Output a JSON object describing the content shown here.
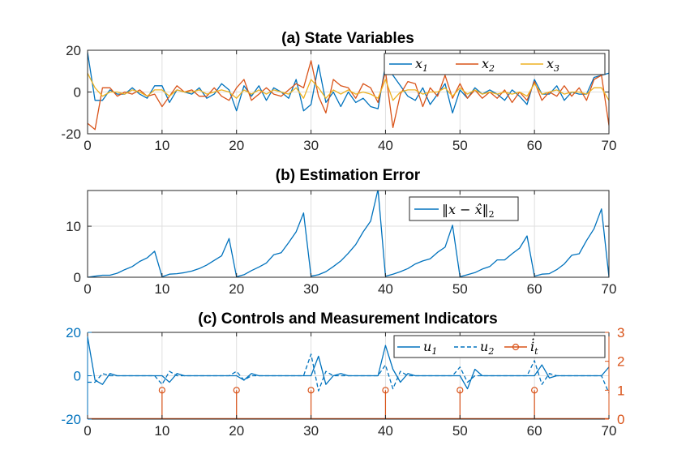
{
  "chart_data": [
    {
      "type": "line",
      "title": "(a) State Variables",
      "xlim": [
        0,
        70
      ],
      "ylim": [
        -20,
        20
      ],
      "xticks": [
        "0",
        "10",
        "20",
        "30",
        "40",
        "50",
        "60",
        "70"
      ],
      "yticks": [
        "-20",
        "0",
        "20"
      ],
      "x": [
        0,
        1,
        2,
        3,
        4,
        5,
        6,
        7,
        8,
        9,
        10,
        11,
        12,
        13,
        14,
        15,
        16,
        17,
        18,
        19,
        20,
        21,
        22,
        23,
        24,
        25,
        26,
        27,
        28,
        29,
        30,
        31,
        32,
        33,
        34,
        35,
        36,
        37,
        38,
        39,
        40,
        41,
        42,
        43,
        44,
        45,
        46,
        47,
        48,
        49,
        50,
        51,
        52,
        53,
        54,
        55,
        56,
        57,
        58,
        59,
        60,
        61,
        62,
        63,
        64,
        65,
        66,
        67,
        68,
        69,
        70
      ],
      "series": [
        {
          "name": "x1",
          "label": "x_1",
          "color": "#0072BD",
          "values": [
            19,
            -4,
            -4,
            1,
            -1,
            -1,
            2,
            -1,
            -3,
            3,
            3,
            -5,
            1,
            0,
            -1,
            2,
            -3,
            -1,
            4,
            1,
            -9,
            3,
            -2,
            3,
            -4,
            2,
            0,
            -3,
            6,
            -9,
            -6,
            13,
            -5,
            0,
            -7,
            0,
            -5,
            -3,
            -7,
            -8,
            13,
            8,
            3,
            -2,
            -4,
            2,
            -6,
            -1,
            4,
            -10,
            1,
            -3,
            2,
            -1,
            1,
            -1,
            -4,
            1,
            -2,
            -6,
            6,
            -1,
            -1,
            3,
            -4,
            0,
            -1,
            -1,
            7,
            8,
            9
          ]
        },
        {
          "name": "x2",
          "label": "x_2",
          "color": "#D95319",
          "values": [
            -15,
            -18,
            2,
            2,
            -2,
            0,
            -1,
            1,
            -2,
            -1,
            -7,
            -2,
            3,
            0,
            1,
            -2,
            -2,
            2,
            -2,
            -4,
            2,
            6,
            -4,
            -1,
            2,
            -1,
            -2,
            1,
            4,
            2,
            15,
            -2,
            -10,
            6,
            3,
            2,
            -3,
            4,
            2,
            -5,
            10,
            -17,
            -1,
            5,
            4,
            -7,
            2,
            -2,
            8,
            -3,
            4,
            -3,
            1,
            -3,
            0,
            -3,
            1,
            -5,
            0,
            -4,
            5,
            -4,
            0,
            -2,
            3,
            -2,
            2,
            -4,
            6,
            8,
            -16
          ]
        },
        {
          "name": "x3",
          "label": "x_3",
          "color": "#EDB120",
          "values": [
            9,
            2,
            -2,
            0,
            0,
            -1,
            1,
            0,
            -2,
            1,
            1,
            -2,
            1,
            0,
            0,
            1,
            -1,
            0,
            1,
            0,
            -3,
            1,
            -1,
            1,
            -1,
            1,
            0,
            -1,
            2,
            -3,
            6,
            2,
            -3,
            1,
            -1,
            1,
            -1,
            0,
            -1,
            -3,
            6,
            -4,
            0,
            1,
            1,
            -1,
            0,
            0,
            2,
            -2,
            2,
            -1,
            1,
            -1,
            0,
            -1,
            0,
            -1,
            0,
            -2,
            4,
            -1,
            0,
            1,
            -1,
            0,
            0,
            -1,
            2,
            2,
            -4
          ]
        }
      ],
      "legend": "top-right"
    },
    {
      "type": "line",
      "title": "(b) Estimation Error",
      "xlim": [
        0,
        70
      ],
      "ylim": [
        0,
        17
      ],
      "xticks": [
        "0",
        "10",
        "20",
        "30",
        "40",
        "50",
        "60",
        "70"
      ],
      "yticks": [
        "0",
        "10"
      ],
      "x": [
        0,
        1,
        2,
        3,
        4,
        5,
        6,
        7,
        8,
        9,
        10,
        11,
        12,
        13,
        14,
        15,
        16,
        17,
        18,
        19,
        20,
        21,
        22,
        23,
        24,
        25,
        26,
        27,
        28,
        29,
        30,
        31,
        32,
        33,
        34,
        35,
        36,
        37,
        38,
        39,
        40,
        41,
        42,
        43,
        44,
        45,
        46,
        47,
        48,
        49,
        50,
        51,
        52,
        53,
        54,
        55,
        56,
        57,
        58,
        59,
        60,
        61,
        62,
        63,
        64,
        65,
        66,
        67,
        68,
        69,
        70
      ],
      "series": [
        {
          "name": "err",
          "label": "||x - x̂||_2",
          "color": "#0072BD",
          "values": [
            0,
            0.2,
            0.4,
            0.4,
            0.8,
            1.5,
            2.1,
            3.1,
            3.8,
            5.1,
            0.1,
            0.6,
            0.7,
            0.9,
            1.2,
            1.7,
            2.4,
            3.3,
            4.2,
            7.6,
            0.1,
            0.5,
            1.3,
            2.0,
            2.8,
            4.4,
            4.8,
            6.8,
            8.9,
            12.6,
            0.2,
            0.5,
            1.1,
            2.1,
            3.2,
            4.7,
            6.4,
            8.9,
            11.0,
            17.2,
            0.2,
            0.6,
            1.1,
            1.7,
            2.6,
            3.2,
            3.6,
            4.9,
            5.9,
            10.2,
            0.1,
            0.5,
            0.9,
            1.6,
            2.1,
            3.4,
            3.4,
            4.6,
            5.7,
            8.1,
            0.2,
            0.6,
            0.7,
            1.5,
            2.6,
            4.3,
            4.6,
            7.2,
            9.5,
            13.4,
            0.1
          ]
        }
      ],
      "legend": "top-right"
    },
    {
      "type": "line",
      "title": "(c) Controls and Measurement Indicators",
      "xlim": [
        0,
        70
      ],
      "ylim_left": [
        -20,
        20
      ],
      "ylim_right": [
        0,
        3
      ],
      "xticks": [
        "0",
        "10",
        "20",
        "30",
        "40",
        "50",
        "60",
        "70"
      ],
      "yticks_left": [
        "-20",
        "0",
        "20"
      ],
      "yticks_right": [
        "0",
        "1",
        "2",
        "3"
      ],
      "x": [
        0,
        1,
        2,
        3,
        4,
        5,
        6,
        7,
        8,
        9,
        10,
        11,
        12,
        13,
        14,
        15,
        16,
        17,
        18,
        19,
        20,
        21,
        22,
        23,
        24,
        25,
        26,
        27,
        28,
        29,
        30,
        31,
        32,
        33,
        34,
        35,
        36,
        37,
        38,
        39,
        40,
        41,
        42,
        43,
        44,
        45,
        46,
        47,
        48,
        49,
        50,
        51,
        52,
        53,
        54,
        55,
        56,
        57,
        58,
        59,
        60,
        61,
        62,
        63,
        64,
        65,
        66,
        67,
        68,
        69,
        70
      ],
      "series": [
        {
          "name": "u1",
          "label": "u_1",
          "color": "#0072BD",
          "style": "solid",
          "axis": "left",
          "values": [
            18,
            -2,
            -4,
            1,
            0,
            0,
            0,
            0,
            0,
            0,
            0,
            -3,
            1,
            0,
            0,
            0,
            0,
            0,
            0,
            0,
            0,
            -2,
            1,
            0,
            0,
            0,
            0,
            0,
            0,
            0,
            0,
            9,
            -4,
            0,
            1,
            0,
            0,
            0,
            0,
            0,
            14,
            3,
            -3,
            1,
            0,
            0,
            0,
            0,
            0,
            0,
            0,
            -6,
            3,
            0,
            0,
            0,
            0,
            0,
            0,
            0,
            0,
            5,
            -1,
            0,
            0,
            0,
            0,
            0,
            0,
            0,
            4
          ]
        },
        {
          "name": "u2",
          "label": "u_2",
          "color": "#0072BD",
          "style": "dashed",
          "axis": "left",
          "values": [
            -3,
            -3,
            1,
            0,
            0,
            0,
            0,
            0,
            0,
            0,
            -4,
            2,
            0,
            0,
            0,
            0,
            0,
            0,
            0,
            0,
            2,
            -2,
            0,
            0,
            0,
            0,
            0,
            0,
            0,
            0,
            10,
            -7,
            2,
            0,
            0,
            0,
            0,
            0,
            0,
            0,
            5,
            -6,
            2,
            0,
            0,
            0,
            0,
            0,
            0,
            0,
            4,
            -3,
            0,
            0,
            0,
            0,
            0,
            0,
            0,
            0,
            7,
            -4,
            1,
            0,
            0,
            0,
            0,
            0,
            0,
            0,
            -8
          ]
        },
        {
          "name": "it",
          "label": "i_t",
          "color": "#D95319",
          "style": "stem",
          "axis": "right",
          "x": [
            10,
            20,
            30,
            40,
            50,
            60
          ],
          "values": [
            1,
            1,
            1,
            1,
            1,
            1
          ]
        }
      ],
      "legend": "top-right"
    }
  ]
}
